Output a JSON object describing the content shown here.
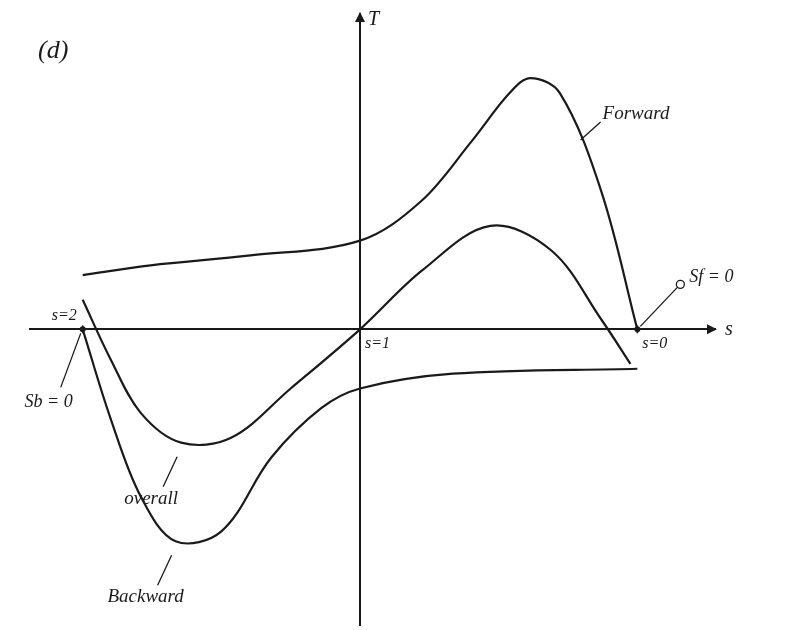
{
  "chart_data": {
    "type": "line",
    "title": "(d)",
    "x_label": "s",
    "y_label": "T",
    "series": [
      {
        "name": "Forward",
        "color": "#1a1a1a",
        "x": [
          2.0,
          1.755,
          1.395,
          1.0,
          0.78,
          0.6,
          0.46,
          0.385,
          0.28,
          0.13,
          0.0
        ],
        "values": [
          0.55,
          0.65,
          0.75,
          0.9,
          1.3,
          1.9,
          2.4,
          2.55,
          2.4,
          1.4,
          0.0
        ]
      },
      {
        "name": "overall",
        "color": "#1a1a1a",
        "x": [
          2.0,
          1.9,
          1.79,
          1.645,
          1.465,
          1.25,
          1.0,
          0.775,
          0.53,
          0.31,
          0.13,
          0.025
        ],
        "values": [
          0.3,
          -0.3,
          -0.85,
          -1.15,
          -1.1,
          -0.6,
          0.0,
          0.6,
          1.05,
          0.8,
          0.1,
          -0.35
        ]
      },
      {
        "name": "Backward",
        "color": "#1a1a1a",
        "x": [
          2.0,
          1.9,
          1.79,
          1.665,
          1.5,
          1.32,
          1.14,
          1.0,
          0.665,
          0.0
        ],
        "values": [
          0.0,
          -0.9,
          -1.7,
          -2.15,
          -2.05,
          -1.3,
          -0.8,
          -0.6,
          -0.45,
          -0.4
        ]
      }
    ],
    "annotations": [
      {
        "text": "Sf = 0",
        "x": 0,
        "y": 0
      },
      {
        "text": "Sb = 0",
        "x": 2,
        "y": 0
      }
    ],
    "xlim": [
      -0.28,
      2.19
    ],
    "xticks": [
      {
        "value": 2,
        "label": "s=2"
      },
      {
        "value": 1,
        "label": "s=1"
      },
      {
        "value": 0,
        "label": "s=0"
      }
    ],
    "ylim": [
      -3.0,
      3.2
    ],
    "yticks": [],
    "tick_labels": "x",
    "grid": false
  }
}
